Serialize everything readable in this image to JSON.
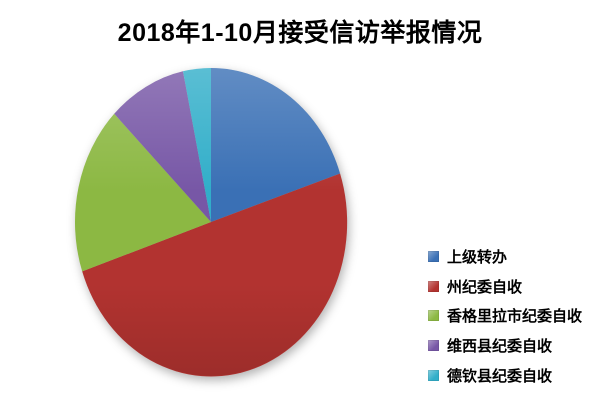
{
  "title": "2018年1-10月接受信访举报情况",
  "colors": {
    "background": "#ffffff",
    "text": "#000000",
    "slice_blue": "#3A70B5",
    "slice_red": "#B23330",
    "slice_green": "#8CB843",
    "slice_purple": "#7757A6",
    "slice_cyan": "#31AEC9"
  },
  "chart_data": {
    "type": "pie",
    "title": "2018年1-10月接受信访举报情况",
    "series": [
      {
        "label": "上级转办",
        "value": 19.9,
        "color": "#3A70B5"
      },
      {
        "label": "州纪委自收",
        "value": 49.9,
        "color": "#B23330"
      },
      {
        "label": "香格里拉市纪委自收",
        "value": 17.6,
        "color": "#8CB843"
      },
      {
        "label": "维西县纪委自收",
        "value": 9.3,
        "color": "#7757A6"
      },
      {
        "label": "德钦县纪委自收",
        "value": 3.3,
        "color": "#31AEC9"
      }
    ],
    "value_unit": "percent-of-whole (estimated from slice angles; chart shows no data labels)",
    "start_angle_deg": 0,
    "direction": "clockwise",
    "legend_position": "right",
    "data_labels": false,
    "grid": false
  }
}
